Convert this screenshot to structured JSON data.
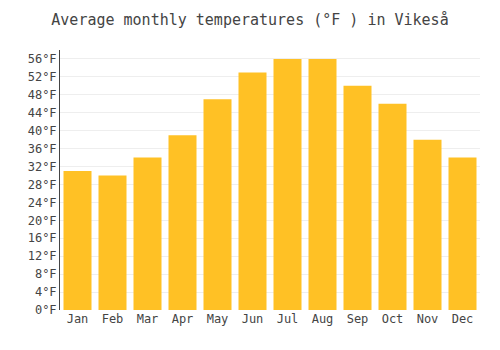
{
  "chart_data": {
    "type": "bar",
    "title": "Average monthly temperatures (°F ) in Vikeså",
    "categories": [
      "Jan",
      "Feb",
      "Mar",
      "Apr",
      "May",
      "Jun",
      "Jul",
      "Aug",
      "Sep",
      "Oct",
      "Nov",
      "Dec"
    ],
    "values": [
      31,
      30,
      34,
      39,
      47,
      53,
      56,
      56,
      50,
      46,
      38,
      34
    ],
    "color": "#FFC125",
    "ylim": [
      0,
      58
    ],
    "yticks": [
      {
        "value": 0,
        "label": "0°F"
      },
      {
        "value": 4,
        "label": "4°F"
      },
      {
        "value": 8,
        "label": "8°F"
      },
      {
        "value": 12,
        "label": "12°F"
      },
      {
        "value": 16,
        "label": "16°F"
      },
      {
        "value": 20,
        "label": "20°F"
      },
      {
        "value": 24,
        "label": "24°F"
      },
      {
        "value": 28,
        "label": "28°F"
      },
      {
        "value": 32,
        "label": "32°F"
      },
      {
        "value": 36,
        "label": "36°F"
      },
      {
        "value": 40,
        "label": "40°F"
      },
      {
        "value": 44,
        "label": "44°F"
      },
      {
        "value": 48,
        "label": "48°F"
      },
      {
        "value": 52,
        "label": "52°F"
      },
      {
        "value": 56,
        "label": "56°F"
      }
    ],
    "grid": true
  }
}
